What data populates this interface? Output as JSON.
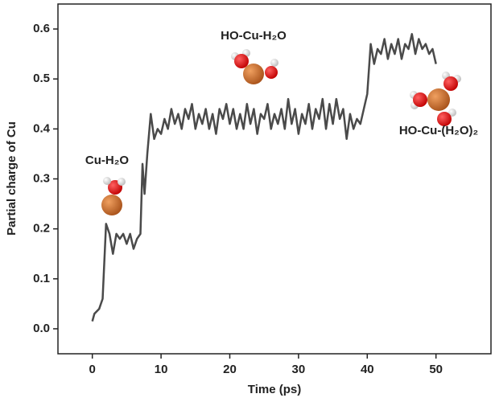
{
  "chart_data": {
    "type": "line",
    "xlabel": "Time (ps)",
    "ylabel": "Partial charge of Cu",
    "annotations": [
      "Cu-H₂O",
      "HO-Cu-H₂O",
      "HO-Cu-(H₂O)₂"
    ],
    "x": [
      0,
      0.3,
      1,
      1.5,
      2,
      2.5,
      3,
      3.5,
      4,
      4.5,
      5,
      5.5,
      6,
      6.5,
      7,
      7.3,
      7.6,
      8,
      8.5,
      9,
      9.5,
      10,
      10.5,
      11,
      11.5,
      12,
      12.5,
      13,
      13.5,
      14,
      14.5,
      15,
      15.5,
      16,
      16.5,
      17,
      17.5,
      18,
      18.5,
      19,
      19.5,
      20,
      20.5,
      21,
      21.5,
      22,
      22.5,
      23,
      23.5,
      24,
      24.5,
      25,
      25.5,
      26,
      26.5,
      27,
      27.5,
      28,
      28.5,
      29,
      29.5,
      30,
      30.5,
      31,
      31.5,
      32,
      32.5,
      33,
      33.5,
      34,
      34.5,
      35,
      35.5,
      36,
      36.5,
      37,
      37.5,
      38,
      38.5,
      39,
      39.5,
      40,
      40.5,
      41,
      41.5,
      42,
      42.5,
      43,
      43.5,
      44,
      44.5,
      45,
      45.5,
      46,
      46.5,
      47,
      47.5,
      48,
      48.5,
      49,
      49.5,
      50
    ],
    "series": [
      {
        "color": "#4a4a4a",
        "values": [
          0.015,
          0.03,
          0.04,
          0.06,
          0.21,
          0.19,
          0.15,
          0.19,
          0.18,
          0.19,
          0.17,
          0.19,
          0.16,
          0.18,
          0.19,
          0.33,
          0.27,
          0.35,
          0.43,
          0.38,
          0.4,
          0.39,
          0.42,
          0.4,
          0.44,
          0.41,
          0.43,
          0.4,
          0.44,
          0.42,
          0.45,
          0.4,
          0.43,
          0.41,
          0.44,
          0.4,
          0.43,
          0.39,
          0.44,
          0.42,
          0.45,
          0.41,
          0.44,
          0.4,
          0.43,
          0.4,
          0.45,
          0.41,
          0.44,
          0.39,
          0.43,
          0.42,
          0.45,
          0.4,
          0.43,
          0.41,
          0.44,
          0.4,
          0.46,
          0.41,
          0.44,
          0.39,
          0.43,
          0.41,
          0.45,
          0.4,
          0.44,
          0.42,
          0.46,
          0.4,
          0.45,
          0.41,
          0.46,
          0.42,
          0.44,
          0.38,
          0.43,
          0.4,
          0.42,
          0.41,
          0.44,
          0.47,
          0.57,
          0.53,
          0.56,
          0.55,
          0.58,
          0.54,
          0.57,
          0.55,
          0.58,
          0.54,
          0.57,
          0.56,
          0.59,
          0.55,
          0.58,
          0.56,
          0.57,
          0.55,
          0.56,
          0.53
        ]
      }
    ],
    "xlim": [
      -5,
      58
    ],
    "xticks": [
      0,
      10,
      20,
      30,
      40,
      50
    ],
    "ylim": [
      -0.05,
      0.65
    ],
    "yticks": [
      {
        "value": 0,
        "label": "0.0"
      },
      0.1,
      0.2,
      0.3,
      0.4,
      0.5,
      0.6
    ]
  }
}
